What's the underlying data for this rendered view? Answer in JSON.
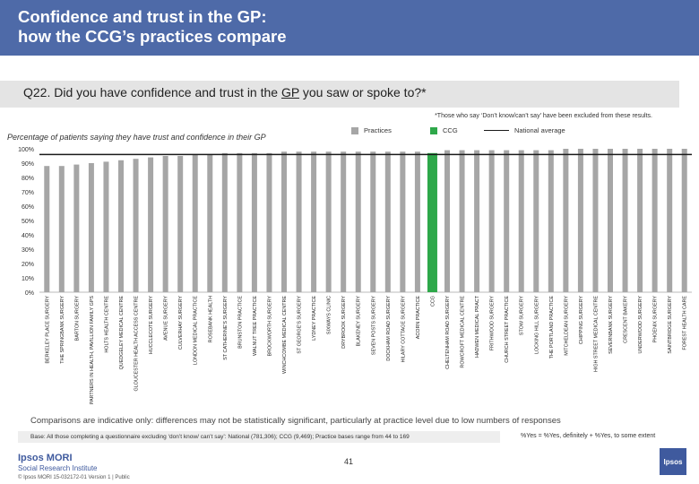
{
  "header": {
    "title_line1": "Confidence and trust in the GP:",
    "title_line2": "how the CCG’s practices compare"
  },
  "question": {
    "text_before": "Q22. Did you have confidence and trust in the ",
    "text_underlined": "GP",
    "text_after": " you saw or spoke to?*"
  },
  "note": "*Those who say ‘Don’t know/can’t say’ have been excluded from these results.",
  "y_title": "Percentage of patients saying they have trust and confidence in their GP",
  "legend": {
    "practices": "Practices",
    "ccg": "CCG",
    "national": "National average"
  },
  "colors": {
    "header": "#4e6aa8",
    "practice_bar": "#a6a6a6",
    "ccg_bar": "#2ea84a",
    "national_line": "#1a1a1a"
  },
  "chart_data": {
    "type": "bar",
    "ylim": [
      0,
      100
    ],
    "yticks": [
      "0%",
      "10%",
      "20%",
      "30%",
      "40%",
      "50%",
      "60%",
      "70%",
      "80%",
      "90%",
      "100%"
    ],
    "national_average": 96,
    "categories": [
      "BERKELEY PLACE SURGERY",
      "THE SPRINGBANK SURGERY",
      "BARTON SURGERY",
      "PARTNERS IN HEALTH, PAVILLION FAMILY GPS",
      "HOLTS HEALTH CENTRE",
      "QUEDGELEY MEDICAL CENTRE",
      "GLOUCESTER HEALTH ACCESS CENTRE",
      "HUCCLECOTE SURGERY",
      "AVENUE SURGERY",
      "CULVERHAY SURGERY",
      "LONDON MEDICAL PRACTICE",
      "ROSEBANK HEALTH",
      "ST CATHERINE'S SURGERY",
      "BRUNSTON PRACTICE",
      "WALNUT TREE PRACTICE",
      "BROCKWORTH SURGERY",
      "WINCHCOMBE MEDICAL CENTRE",
      "ST GEORGE'S SURGERY",
      "LYDNEY PRACTICE",
      "SIXWAYS CLINIC",
      "DRYBROOK SURGERY",
      "BLAKENEY SURGERY",
      "SEVEN POSTS SURGERY",
      "DOCKHAM ROAD SURGERY",
      "HILARY COTTAGE SURGERY",
      "ACORN PRACTICE",
      "CCG",
      "CHELTENHAM ROAD SURGERY",
      "ROWCROFT MEDICAL CENTRE",
      "HADWEN MEDICAL PRACT",
      "FRITHWOOD SURGERY",
      "CHURCH STREET PRACTICE",
      "STOW SURGERY",
      "LOCKING HILL SURGERY",
      "THE PORTLAND PRACTICE",
      "MITCHELDEAN SURGERY",
      "CHIPPING SURGERY",
      "HIGH STREET MEDICAL CENTRE",
      "SEVERNBANK SURGERY",
      "CRESCENT BAKERY",
      "UNDERWOOD SURGERY",
      "PHOENIX SURGERY",
      "SAINTBRIDGE SURGERY",
      "FOREST HEALTH CARE"
    ],
    "values": [
      88,
      88,
      89,
      90,
      91,
      92,
      93,
      94,
      95,
      95,
      96,
      96,
      97,
      97,
      97,
      97,
      98,
      98,
      98,
      98,
      98,
      98,
      98,
      98,
      98,
      98,
      97,
      99,
      99,
      99,
      99,
      99,
      99,
      99,
      99,
      100,
      100,
      100,
      100,
      100,
      100,
      100,
      100,
      100
    ],
    "highlight_category": "CCG"
  },
  "comparisons": "Comparisons are indicative only: differences may not be statistically significant, particularly at practice level due to low numbers of responses",
  "base": "Base: All those completing a questionnaire excluding ‘don’t know/ can’t say’: National (781,306); CCG (9,469); Practice bases range from 44 to 169",
  "keynote": "%Yes = %Yes, definitely + %Yes, to some extent",
  "footer": {
    "page_number": "41",
    "logo_line1": "Ipsos MORI",
    "logo_line2": "Social Research Institute",
    "copyright": "© Ipsos MORI    15-032172-01 Version 1 | Public",
    "corner_logo": "Ipsos"
  }
}
